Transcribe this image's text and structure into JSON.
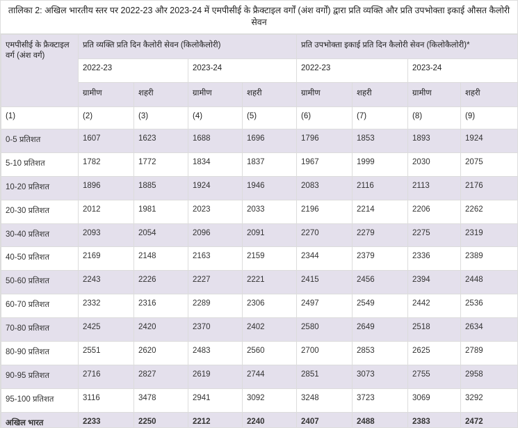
{
  "title": "तालिका 2: अखिल भारतीय स्तर पर 2022-23 और 2023-24 में एमपीसीई के फ्रैक्टाइल वर्गों (अंश वर्गों) द्वारा प्रति व्यक्ति और प्रति उपभोक्ता इकाई औसत कैलोरी सेवन",
  "header": {
    "stub": "एमपीसीई के फ्रैक्टाइल वर्ग (अंश वर्ग)",
    "group1": "प्रति व्यक्ति प्रति दिन कैलोरी सेवन (किलोकैलोरी)",
    "group2": "प्रति उपभोक्ता इकाई प्रति दिन कैलोरी सेवन (किलोकैलोरी)*",
    "years": [
      "2022-23",
      "2023-24",
      "2022-23",
      "2023-24"
    ],
    "sectors": [
      "ग्रामीण",
      "शहरी",
      "ग्रामीण",
      "शहरी",
      "ग्रामीण",
      "शहरी",
      "ग्रामीण",
      "शहरी"
    ],
    "col_numbers": [
      "(1)",
      "(2)",
      "(3)",
      "(4)",
      "(5)",
      "(6)",
      "(7)",
      "(8)",
      "(9)"
    ]
  },
  "rows": [
    {
      "label": "0-5 प्रतिशत",
      "values": [
        "1607",
        "1623",
        "1688",
        "1696",
        "1796",
        "1853",
        "1893",
        "1924"
      ]
    },
    {
      "label": "5-10 प्रतिशत",
      "values": [
        "1782",
        "1772",
        "1834",
        "1837",
        "1967",
        "1999",
        "2030",
        "2075"
      ]
    },
    {
      "label": "10-20 प्रतिशत",
      "values": [
        "1896",
        "1885",
        "1924",
        "1946",
        "2083",
        "2116",
        "2113",
        "2176"
      ]
    },
    {
      "label": "20-30 प्रतिशत",
      "values": [
        "2012",
        "1981",
        "2023",
        "2033",
        "2196",
        "2214",
        "2206",
        "2262"
      ]
    },
    {
      "label": "30-40 प्रतिशत",
      "values": [
        "2093",
        "2054",
        "2096",
        "2091",
        "2270",
        "2279",
        "2275",
        "2319"
      ]
    },
    {
      "label": "40-50 प्रतिशत",
      "values": [
        "2169",
        "2148",
        "2163",
        "2159",
        "2344",
        "2379",
        "2336",
        "2389"
      ]
    },
    {
      "label": "50-60 प्रतिशत",
      "values": [
        "2243",
        "2226",
        "2227",
        "2221",
        "2415",
        "2456",
        "2394",
        "2448"
      ]
    },
    {
      "label": "60-70 प्रतिशत",
      "values": [
        "2332",
        "2316",
        "2289",
        "2306",
        "2497",
        "2549",
        "2442",
        "2536"
      ]
    },
    {
      "label": "70-80 प्रतिशत",
      "values": [
        "2425",
        "2420",
        "2370",
        "2402",
        "2580",
        "2649",
        "2518",
        "2634"
      ]
    },
    {
      "label": "80-90 प्रतिशत",
      "values": [
        "2551",
        "2620",
        "2483",
        "2560",
        "2700",
        "2853",
        "2625",
        "2789"
      ]
    },
    {
      "label": "90-95 प्रतिशत",
      "values": [
        "2716",
        "2827",
        "2619",
        "2744",
        "2851",
        "3073",
        "2755",
        "2958"
      ]
    },
    {
      "label": "95-100 प्रतिशत",
      "values": [
        "3116",
        "3478",
        "2941",
        "3092",
        "3248",
        "3723",
        "3069",
        "3292"
      ]
    },
    {
      "label": "अखिल भारत",
      "values": [
        "2233",
        "2250",
        "2212",
        "2240",
        "2407",
        "2488",
        "2383",
        "2472"
      ],
      "total": true
    }
  ],
  "colors": {
    "band": "#e4e0ec",
    "border": "#dcdcdc"
  }
}
